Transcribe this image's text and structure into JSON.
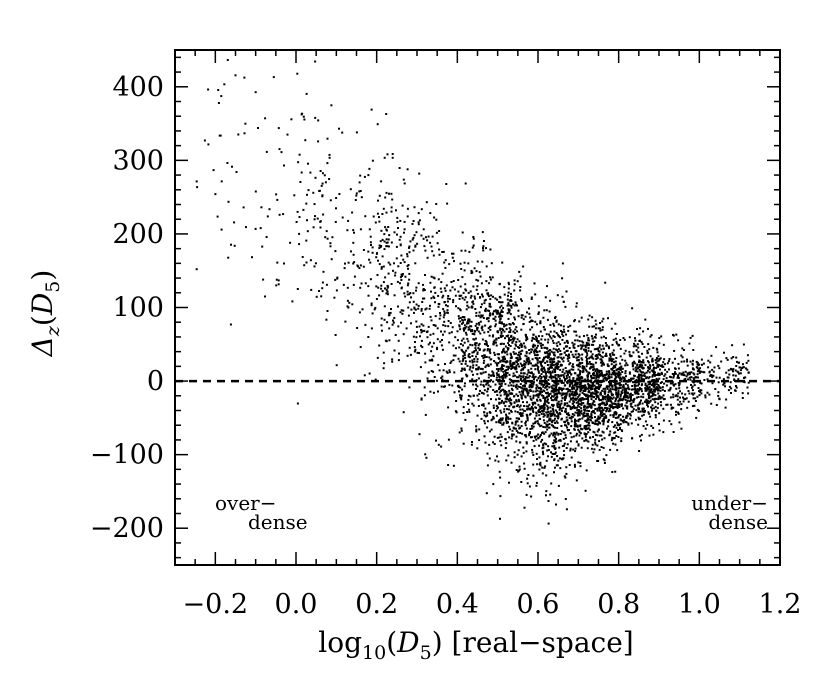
{
  "chart_data": {
    "type": "scatter",
    "xlabel": "log10(D5) [real-space]",
    "ylabel": "Δz(D5)",
    "xlim": [
      -0.3,
      1.2
    ],
    "ylim": [
      -250,
      450
    ],
    "x_ticks": [
      "−0.2",
      "0.0",
      "0.2",
      "0.4",
      "0.6",
      "0.8",
      "1.0",
      "1.2"
    ],
    "y_ticks": [
      "400",
      "300",
      "200",
      "100",
      "0",
      "−100",
      "−200"
    ],
    "reference_line": {
      "y": 0,
      "style": "dashed"
    },
    "annotations": {
      "left": [
        "over−",
        "dense"
      ],
      "right": [
        "under−",
        "dense"
      ]
    },
    "point_color": "#000000",
    "trend": [
      {
        "x": -0.2,
        "y_mean": 300,
        "y_spread": 90
      },
      {
        "x": 0.0,
        "y_mean": 250,
        "y_spread": 80
      },
      {
        "x": 0.2,
        "y_mean": 160,
        "y_spread": 70
      },
      {
        "x": 0.4,
        "y_mean": 60,
        "y_spread": 70
      },
      {
        "x": 0.6,
        "y_mean": -15,
        "y_spread": 55
      },
      {
        "x": 0.8,
        "y_mean": -10,
        "y_spread": 35
      },
      {
        "x": 1.0,
        "y_mean": 5,
        "y_spread": 20
      },
      {
        "x": 1.1,
        "y_mean": 10,
        "y_spread": 15
      }
    ],
    "density": [
      {
        "x0": -0.25,
        "x1": 0.0,
        "count": 70
      },
      {
        "x0": 0.0,
        "x1": 0.2,
        "count": 180
      },
      {
        "x0": 0.2,
        "x1": 0.4,
        "count": 450
      },
      {
        "x0": 0.4,
        "x1": 0.5,
        "count": 500
      },
      {
        "x0": 0.5,
        "x1": 0.6,
        "count": 800
      },
      {
        "x0": 0.6,
        "x1": 0.7,
        "count": 900
      },
      {
        "x0": 0.7,
        "x1": 0.8,
        "count": 850
      },
      {
        "x0": 0.8,
        "x1": 0.9,
        "count": 550
      },
      {
        "x0": 0.9,
        "x1": 1.0,
        "count": 220
      },
      {
        "x0": 1.0,
        "x1": 1.12,
        "count": 120
      }
    ],
    "grid": false,
    "legend": "none"
  }
}
